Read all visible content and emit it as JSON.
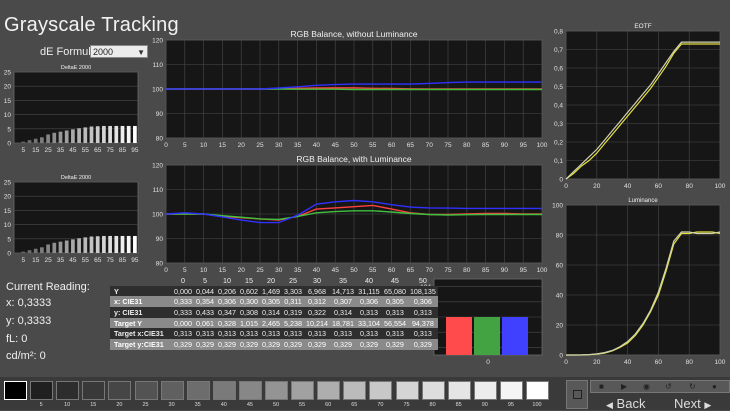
{
  "page": {
    "title": "Grayscale Tracking"
  },
  "de_formula": {
    "label": "dE Formula:",
    "value": "2000"
  },
  "charts": {
    "deltae_top": {
      "title": "DeltaE 2000",
      "y_ticks": [
        "0",
        "5",
        "10",
        "15",
        "20",
        "25"
      ],
      "x_ticks": [
        "5",
        "15",
        "25",
        "35",
        "45",
        "55",
        "65",
        "75",
        "85",
        "95"
      ]
    },
    "deltae_bottom": {
      "title": "DeltaE 2000",
      "y_ticks": [
        "0",
        "5",
        "10",
        "15",
        "20",
        "25"
      ],
      "x_ticks": [
        "5",
        "15",
        "25",
        "35",
        "45",
        "55",
        "65",
        "75",
        "85",
        "95"
      ]
    },
    "rgb_no_lum": {
      "title": "RGB Balance, without Luminance",
      "y_ticks": [
        "80",
        "90",
        "100",
        "110",
        "120"
      ],
      "x_ticks": [
        "0",
        "5",
        "10",
        "15",
        "20",
        "25",
        "30",
        "35",
        "40",
        "45",
        "50",
        "55",
        "60",
        "65",
        "70",
        "75",
        "80",
        "85",
        "90",
        "95",
        "100"
      ]
    },
    "rgb_lum": {
      "title": "RGB Balance, with Luminance",
      "y_ticks": [
        "80",
        "90",
        "100",
        "110",
        "120"
      ],
      "x_ticks": [
        "0",
        "5",
        "10",
        "15",
        "20",
        "25",
        "30",
        "35",
        "40",
        "45",
        "50",
        "55",
        "60",
        "65",
        "70",
        "75",
        "80",
        "85",
        "90",
        "95",
        "100"
      ]
    },
    "eotf": {
      "title": "EOTF",
      "y_ticks": [
        "0",
        "0,1",
        "0,2",
        "0,3",
        "0,4",
        "0,5",
        "0,6",
        "0,7",
        "0,8"
      ],
      "x_ticks": [
        "0",
        "20",
        "40",
        "60",
        "80",
        "100"
      ]
    },
    "luminance": {
      "title": "Luminance",
      "y_ticks": [
        "0",
        "20",
        "40",
        "60",
        "80",
        "100"
      ],
      "x_ticks": [
        "0",
        "20",
        "40",
        "60",
        "80",
        "100"
      ]
    },
    "rgb_bar": {
      "y_ticks": [
        "96",
        "98",
        "100",
        "102",
        "104"
      ],
      "x_label": "0"
    }
  },
  "chart_data": [
    {
      "type": "bar",
      "title": "DeltaE 2000",
      "categories": [
        "5",
        "10",
        "15",
        "20",
        "25",
        "30",
        "35",
        "40",
        "45",
        "50",
        "55",
        "60",
        "65",
        "70",
        "75",
        "80",
        "85",
        "90",
        "95",
        "100"
      ],
      "values": [
        0,
        0.5,
        1,
        1.5,
        2,
        3,
        3.6,
        4,
        4.4,
        4.8,
        5.2,
        5.5,
        5.8,
        5.9,
        6,
        6,
        6,
        6,
        6,
        6
      ],
      "ylim": [
        0,
        25
      ]
    },
    {
      "type": "bar",
      "title": "DeltaE 2000",
      "categories": [
        "5",
        "10",
        "15",
        "20",
        "25",
        "30",
        "35",
        "40",
        "45",
        "50",
        "55",
        "60",
        "65",
        "70",
        "75",
        "80",
        "85",
        "90",
        "95",
        "100"
      ],
      "values": [
        0,
        0.5,
        1,
        1.5,
        2,
        3,
        3.6,
        4,
        4.4,
        4.8,
        5.2,
        5.5,
        5.8,
        5.9,
        6,
        6,
        6,
        6,
        6,
        6
      ],
      "ylim": [
        0,
        25
      ]
    },
    {
      "type": "line",
      "title": "RGB Balance, without Luminance",
      "x": [
        0,
        5,
        10,
        15,
        20,
        25,
        30,
        35,
        40,
        45,
        50,
        55,
        60,
        65,
        70,
        75,
        80,
        85,
        90,
        95,
        100
      ],
      "ylim": [
        80,
        120
      ],
      "series": [
        {
          "name": "R",
          "color": "#ff4040",
          "values": [
            100,
            100,
            100,
            100,
            100,
            100,
            100.1,
            100.3,
            100.4,
            100.5,
            100.5,
            100.3,
            100.2,
            100.1,
            100,
            100,
            100,
            100,
            100,
            100,
            100
          ]
        },
        {
          "name": "G",
          "color": "#40c040",
          "values": [
            100,
            100,
            100,
            100,
            100,
            100,
            100,
            99.9,
            99.9,
            99.9,
            99.8,
            99.8,
            99.8,
            99.8,
            99.8,
            99.8,
            99.8,
            99.8,
            99.8,
            99.8,
            99.8
          ]
        },
        {
          "name": "B",
          "color": "#3030ff",
          "values": [
            100,
            100,
            100,
            100,
            100,
            100,
            100.4,
            100.9,
            101.5,
            101.8,
            102,
            102,
            102,
            102,
            102.3,
            102.6,
            102.8,
            102.8,
            102.8,
            102.8,
            102.8
          ]
        }
      ]
    },
    {
      "type": "line",
      "title": "RGB Balance, with Luminance",
      "x": [
        0,
        5,
        10,
        15,
        20,
        25,
        30,
        35,
        40,
        45,
        50,
        55,
        60,
        65,
        70,
        75,
        80,
        85,
        90,
        95,
        100
      ],
      "ylim": [
        80,
        120
      ],
      "series": [
        {
          "name": "R",
          "color": "#ff4040",
          "values": [
            100,
            100,
            100,
            99,
            98.5,
            98,
            97.5,
            99,
            102,
            102.5,
            103,
            103.5,
            102,
            100.5,
            99.8,
            99.8,
            100,
            100.2,
            100.2,
            100,
            100
          ]
        },
        {
          "name": "G",
          "color": "#40c040",
          "values": [
            100,
            100,
            100,
            99.3,
            98.7,
            98,
            97.8,
            99,
            100.5,
            101,
            101.3,
            101.3,
            100.8,
            100.2,
            99.8,
            99.6,
            99.7,
            99.8,
            99.8,
            99.8,
            99.8
          ]
        },
        {
          "name": "B",
          "color": "#3030ff",
          "values": [
            100,
            100.5,
            100,
            98.8,
            97.5,
            96.5,
            96.5,
            99.5,
            104,
            105,
            105.5,
            105,
            103.8,
            102.8,
            102.5,
            102.4,
            102.3,
            102.3,
            102.3,
            102.3,
            102.3
          ]
        }
      ]
    },
    {
      "type": "line",
      "title": "EOTF",
      "x": [
        0,
        5,
        10,
        15,
        20,
        25,
        30,
        35,
        40,
        45,
        50,
        55,
        60,
        65,
        70,
        75,
        80,
        85,
        90,
        95,
        100
      ],
      "ylim": [
        0,
        0.8
      ],
      "series": [
        {
          "name": "measured",
          "color": "#e6e040",
          "values": [
            0,
            0.03,
            0.07,
            0.1,
            0.14,
            0.19,
            0.24,
            0.29,
            0.34,
            0.39,
            0.44,
            0.49,
            0.55,
            0.61,
            0.68,
            0.73,
            0.73,
            0.73,
            0.73,
            0.73,
            0.73
          ]
        },
        {
          "name": "target",
          "color": "#cfd2b0",
          "values": [
            0,
            0.04,
            0.08,
            0.12,
            0.16,
            0.21,
            0.26,
            0.31,
            0.36,
            0.41,
            0.46,
            0.51,
            0.57,
            0.63,
            0.69,
            0.74,
            0.74,
            0.74,
            0.74,
            0.74,
            0.74
          ]
        }
      ]
    },
    {
      "type": "line",
      "title": "Luminance",
      "x": [
        0,
        5,
        10,
        15,
        20,
        25,
        30,
        35,
        40,
        45,
        50,
        55,
        60,
        65,
        70,
        75,
        80,
        85,
        90,
        95,
        100
      ],
      "ylim": [
        0,
        100
      ],
      "series": [
        {
          "name": "measured",
          "color": "#e6e040",
          "values": [
            0,
            0,
            0,
            0.2,
            0.6,
            1.3,
            2.7,
            5,
            8,
            13,
            20,
            29,
            40,
            56,
            74,
            81,
            81,
            82,
            82,
            82,
            81
          ]
        },
        {
          "name": "target",
          "color": "#cfd2b0",
          "values": [
            0,
            0,
            0.1,
            0.3,
            0.8,
            1.6,
            3,
            5.5,
            9,
            14,
            21,
            30,
            42,
            58,
            76,
            82,
            82,
            81,
            81,
            81,
            82
          ]
        }
      ]
    },
    {
      "type": "bar",
      "categories": [
        "R",
        "G",
        "B"
      ],
      "values": [
        100,
        100,
        100
      ],
      "colors": [
        "#ff4b4b",
        "#43a343",
        "#4040ff"
      ],
      "ylim": [
        95,
        105
      ],
      "xlabel": "0"
    }
  ],
  "current_reading": {
    "label": "Current Reading:",
    "x": "x: 0,3333",
    "y": "y: 0,3333",
    "fl": "fL: 0",
    "cd": "cd/m²: 0"
  },
  "readings_table": {
    "columns": [
      "0",
      "5",
      "10",
      "15",
      "20",
      "25",
      "30",
      "35",
      "40",
      "45",
      "50"
    ],
    "rows": [
      {
        "label": "Y",
        "values": [
          "0,000",
          "0,044",
          "0,206",
          "0,602",
          "1,469",
          "3,303",
          "6,968",
          "14,713",
          "31,115",
          "65,080",
          "108,135"
        ]
      },
      {
        "label": "x: CIE31",
        "values": [
          "0,333",
          "0,354",
          "0,306",
          "0,300",
          "0,305",
          "0,311",
          "0,312",
          "0,307",
          "0,306",
          "0,305",
          "0,306"
        ]
      },
      {
        "label": "y: CIE31",
        "values": [
          "0,333",
          "0,433",
          "0,347",
          "0,308",
          "0,314",
          "0,319",
          "0,322",
          "0,314",
          "0,313",
          "0,313",
          "0,313"
        ]
      },
      {
        "label": "Target Y",
        "values": [
          "0,000",
          "0,061",
          "0,328",
          "1,015",
          "2,465",
          "5,238",
          "10,214",
          "18,781",
          "33,104",
          "56,554",
          "94,378"
        ]
      },
      {
        "label": "Target x:CIE31",
        "values": [
          "0,313",
          "0,313",
          "0,313",
          "0,313",
          "0,313",
          "0,313",
          "0,313",
          "0,313",
          "0,313",
          "0,313",
          "0,313"
        ]
      },
      {
        "label": "Target y:CIE31",
        "values": [
          "0,329",
          "0,329",
          "0,329",
          "0,329",
          "0,329",
          "0,329",
          "0,329",
          "0,329",
          "0,329",
          "0,329",
          "0,329"
        ]
      }
    ]
  },
  "swatches": {
    "labels": [
      "",
      "5",
      "10",
      "15",
      "20",
      "25",
      "30",
      "35",
      "40",
      "45",
      "50",
      "55",
      "60",
      "65",
      "70",
      "75",
      "80",
      "85",
      "90",
      "95",
      "100"
    ],
    "colors": [
      "#000000",
      "#202020",
      "#2d2d2d",
      "#393939",
      "#464646",
      "#535353",
      "#606060",
      "#6d6d6d",
      "#7a7a7a",
      "#878787",
      "#949494",
      "#a1a1a1",
      "#aeaeae",
      "#bbbbbb",
      "#c8c8c8",
      "#d5d5d5",
      "#dddddd",
      "#e5e5e5",
      "#ededed",
      "#f5f5f5",
      "#ffffff"
    ]
  },
  "nav": {
    "back": "Back",
    "next": "Next"
  },
  "controls": {
    "icons": [
      "stop-icon",
      "play-icon",
      "record-icon",
      "loop-icon",
      "refresh-icon",
      "settings-icon"
    ]
  }
}
